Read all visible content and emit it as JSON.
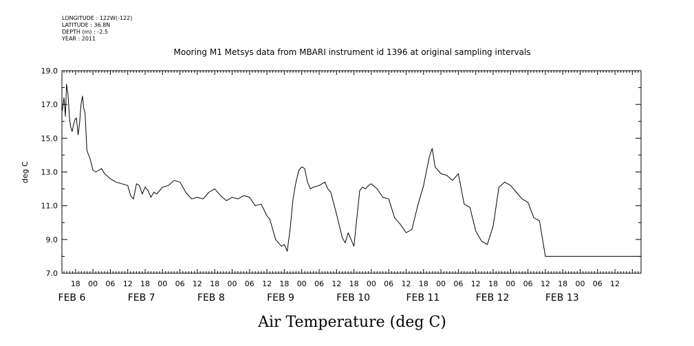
{
  "header": {
    "longitude": "LONGITUDE : 122W(-122)",
    "latitude": "LATITUDE : 36.8N",
    "depth": "DEPTH (m) : -2.5",
    "year": "YEAR : 2011"
  },
  "chart_data": {
    "type": "line",
    "title": "Mooring M1 Metsys data from MBARI instrument id 1396 at original sampling intervals",
    "xlabel": "Air Temperature (deg C)",
    "ylabel": "deg C",
    "ylim": [
      7.0,
      19.0
    ],
    "yticks": [
      "7.0",
      "9.0",
      "11.0",
      "13.0",
      "15.0",
      "17.0",
      "19.0"
    ],
    "x_unit": "hours since FEB 5 00:00",
    "xlim": [
      13.3,
      213.0
    ],
    "hour_ticks": [
      {
        "x": 18,
        "label": "18"
      },
      {
        "x": 24,
        "label": "00"
      },
      {
        "x": 30,
        "label": "06"
      },
      {
        "x": 36,
        "label": "12"
      },
      {
        "x": 42,
        "label": "18"
      },
      {
        "x": 48,
        "label": "00"
      },
      {
        "x": 54,
        "label": "06"
      },
      {
        "x": 60,
        "label": "12"
      },
      {
        "x": 66,
        "label": "18"
      },
      {
        "x": 72,
        "label": "00"
      },
      {
        "x": 78,
        "label": "06"
      },
      {
        "x": 84,
        "label": "12"
      },
      {
        "x": 90,
        "label": "18"
      },
      {
        "x": 96,
        "label": "00"
      },
      {
        "x": 102,
        "label": "06"
      },
      {
        "x": 108,
        "label": "12"
      },
      {
        "x": 114,
        "label": "18"
      },
      {
        "x": 120,
        "label": "00"
      },
      {
        "x": 126,
        "label": "06"
      },
      {
        "x": 132,
        "label": "12"
      },
      {
        "x": 138,
        "label": "18"
      },
      {
        "x": 144,
        "label": "00"
      },
      {
        "x": 150,
        "label": "06"
      },
      {
        "x": 156,
        "label": "12"
      },
      {
        "x": 162,
        "label": "18"
      },
      {
        "x": 168,
        "label": "00"
      },
      {
        "x": 174,
        "label": "06"
      },
      {
        "x": 180,
        "label": "12"
      },
      {
        "x": 186,
        "label": "18"
      },
      {
        "x": 192,
        "label": "00"
      },
      {
        "x": 198,
        "label": "06"
      },
      {
        "x": 204,
        "label": "12"
      }
    ],
    "day_labels": [
      {
        "x": 12,
        "label": "FEB  6"
      },
      {
        "x": 36,
        "label": "FEB  7"
      },
      {
        "x": 60,
        "label": "FEB  8"
      },
      {
        "x": 84,
        "label": "FEB  9"
      },
      {
        "x": 108,
        "label": "FEB 10"
      },
      {
        "x": 132,
        "label": "FEB 11"
      },
      {
        "x": 156,
        "label": "FEB 12"
      },
      {
        "x": 180,
        "label": "FEB 13"
      }
    ],
    "series": [
      {
        "color": "#000000",
        "x": [
          13.4,
          14.0,
          14.5,
          14.9,
          15.4,
          15.9,
          16.3,
          16.8,
          17.3,
          17.8,
          18.3,
          18.9,
          19.4,
          19.9,
          20.4,
          20.8,
          21.3,
          21.9,
          22.3,
          22.8,
          23.3,
          24,
          25,
          26,
          27,
          28,
          30,
          32,
          34,
          36,
          37,
          38,
          39,
          40,
          41,
          42,
          43,
          44,
          45,
          46,
          47,
          48,
          50,
          52,
          54,
          56,
          58,
          60,
          62,
          64,
          66,
          68,
          70,
          72,
          74,
          76,
          78,
          80,
          82,
          84,
          85,
          86,
          87,
          88,
          89,
          90,
          91,
          92,
          93,
          94,
          95,
          96,
          97,
          98,
          99,
          100,
          102,
          104,
          105,
          106,
          108,
          110,
          111,
          112,
          114,
          116,
          117,
          118,
          119,
          120,
          122,
          124,
          126,
          128,
          130,
          132,
          134,
          136,
          138,
          140,
          141,
          142,
          144,
          146,
          148,
          150,
          152,
          154,
          156,
          158,
          160,
          162,
          164,
          166,
          168,
          170,
          172,
          174,
          176,
          178,
          180,
          182,
          184,
          186,
          188,
          190,
          192,
          194,
          196,
          198,
          200,
          202,
          204,
          206,
          208,
          210,
          212,
          212.8
        ],
        "y": [
          16.6,
          17.4,
          16.3,
          18.2,
          17.6,
          16.2,
          15.7,
          15.4,
          15.8,
          16.1,
          16.2,
          15.2,
          15.9,
          17.0,
          17.5,
          16.8,
          16.5,
          14.3,
          14.1,
          13.9,
          13.6,
          13.1,
          13.0,
          13.1,
          13.2,
          12.9,
          12.6,
          12.4,
          12.3,
          12.2,
          11.6,
          11.4,
          12.3,
          12.2,
          11.7,
          12.1,
          11.9,
          11.5,
          11.8,
          11.7,
          11.9,
          12.1,
          12.2,
          12.5,
          12.4,
          11.8,
          11.4,
          11.5,
          11.4,
          11.8,
          12.0,
          11.6,
          11.3,
          11.5,
          11.4,
          11.6,
          11.5,
          11.0,
          11.1,
          10.4,
          10.2,
          9.6,
          9.0,
          8.8,
          8.6,
          8.7,
          8.3,
          9.6,
          11.4,
          12.4,
          13.1,
          13.3,
          13.2,
          12.4,
          12.0,
          12.1,
          12.2,
          12.4,
          12.0,
          11.8,
          10.5,
          9.1,
          8.8,
          9.4,
          8.6,
          11.9,
          12.1,
          12.0,
          12.2,
          12.3,
          12.0,
          11.5,
          11.4,
          10.3,
          9.9,
          9.4,
          9.6,
          11.0,
          12.2,
          13.9,
          14.4,
          13.3,
          12.9,
          12.8,
          12.5,
          12.9,
          11.1,
          10.9,
          9.5,
          8.9,
          8.7,
          9.8,
          12.1,
          12.4,
          12.2,
          11.8,
          11.4,
          11.2,
          10.3,
          10.1,
          8.0,
          8.0,
          8.0,
          8.0,
          8.0,
          8.0,
          8.0,
          8.0,
          8.0,
          8.0,
          8.0,
          8.0,
          8.0,
          8.0,
          8.0,
          8.0,
          8.0,
          8.0
        ]
      }
    ]
  }
}
